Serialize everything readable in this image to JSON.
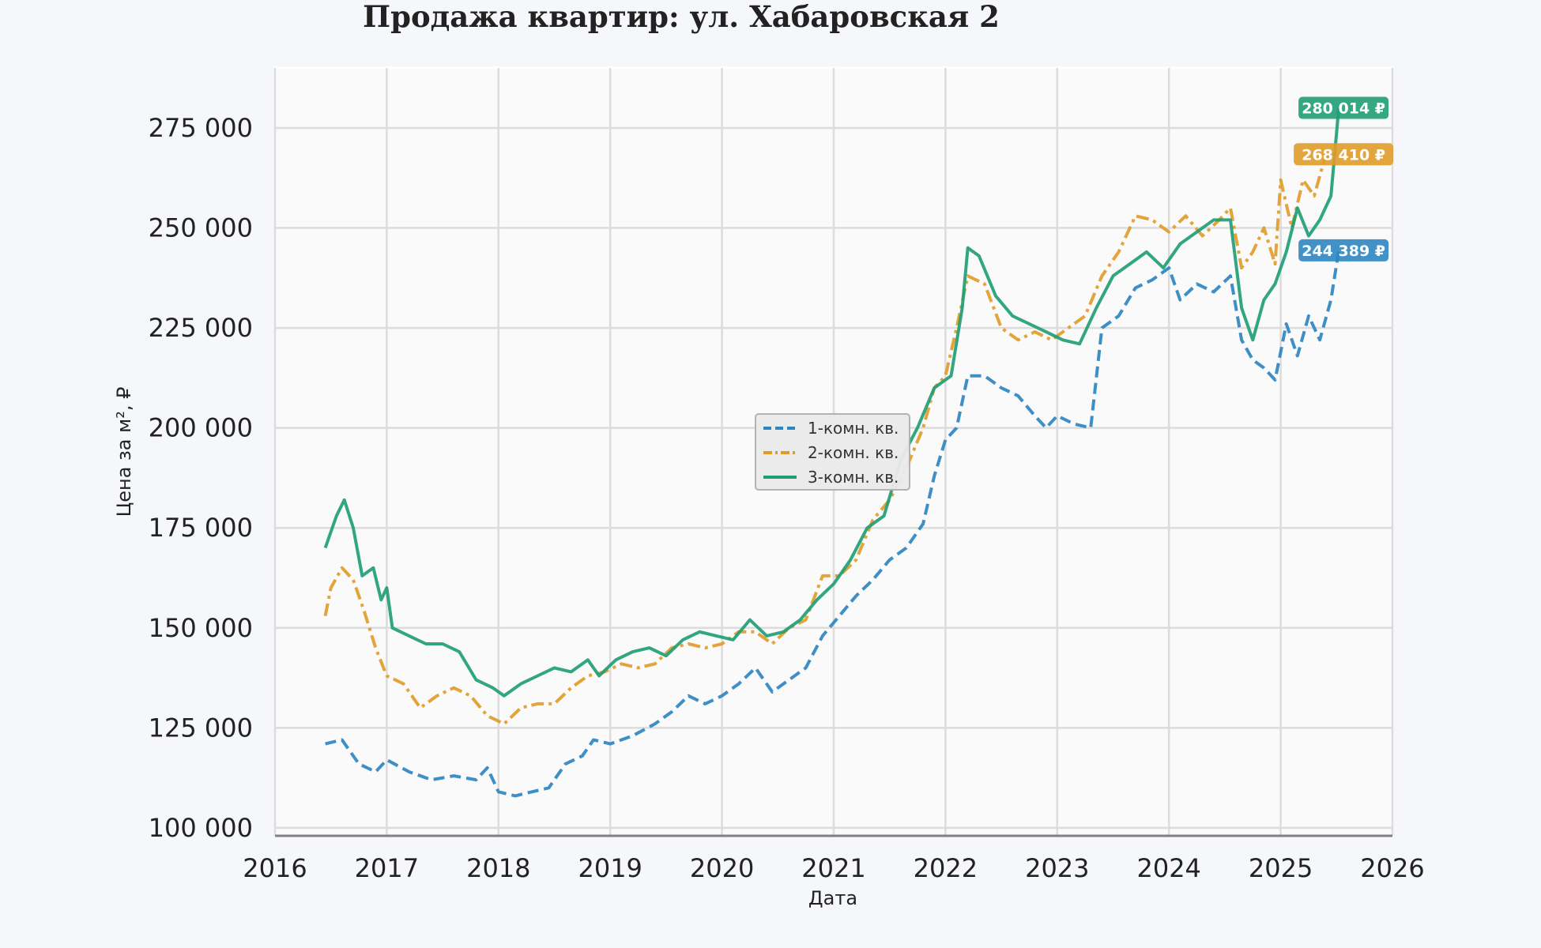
{
  "chart_data": {
    "type": "line",
    "title": "Продажа квартир: ул. Хабаровская 2",
    "xlabel": "Дата",
    "ylabel": "Цена за м², ₽",
    "xlim": [
      2016,
      2026
    ],
    "ylim": [
      98000,
      290000
    ],
    "x_ticks": [
      "2016",
      "2017",
      "2018",
      "2019",
      "2020",
      "2021",
      "2022",
      "2023",
      "2024",
      "2025",
      "2026"
    ],
    "y_ticks": [
      "100 000",
      "125 000",
      "150 000",
      "175 000",
      "200 000",
      "225 000",
      "250 000",
      "275 000"
    ],
    "grid": true,
    "legend_position": "center",
    "series": [
      {
        "name": "1-комн. кв.",
        "color": "#2e86c1",
        "style": "dashed",
        "last_label": "244 389 ₽",
        "points": [
          [
            2016.45,
            121000
          ],
          [
            2016.6,
            122000
          ],
          [
            2016.75,
            116000
          ],
          [
            2016.9,
            114000
          ],
          [
            2017.0,
            117000
          ],
          [
            2017.2,
            114000
          ],
          [
            2017.4,
            112000
          ],
          [
            2017.6,
            113000
          ],
          [
            2017.8,
            112000
          ],
          [
            2017.9,
            115000
          ],
          [
            2018.0,
            109000
          ],
          [
            2018.15,
            108000
          ],
          [
            2018.3,
            109000
          ],
          [
            2018.45,
            110000
          ],
          [
            2018.6,
            116000
          ],
          [
            2018.75,
            118000
          ],
          [
            2018.85,
            122000
          ],
          [
            2019.0,
            121000
          ],
          [
            2019.2,
            123000
          ],
          [
            2019.4,
            126000
          ],
          [
            2019.55,
            129000
          ],
          [
            2019.7,
            133000
          ],
          [
            2019.85,
            131000
          ],
          [
            2020.0,
            133000
          ],
          [
            2020.15,
            136000
          ],
          [
            2020.3,
            140000
          ],
          [
            2020.45,
            134000
          ],
          [
            2020.6,
            137000
          ],
          [
            2020.75,
            140000
          ],
          [
            2020.9,
            148000
          ],
          [
            2021.05,
            153000
          ],
          [
            2021.2,
            158000
          ],
          [
            2021.35,
            162000
          ],
          [
            2021.5,
            167000
          ],
          [
            2021.65,
            170000
          ],
          [
            2021.8,
            176000
          ],
          [
            2021.9,
            188000
          ],
          [
            2022.0,
            197000
          ],
          [
            2022.1,
            200000
          ],
          [
            2022.2,
            213000
          ],
          [
            2022.35,
            213000
          ],
          [
            2022.5,
            210000
          ],
          [
            2022.65,
            208000
          ],
          [
            2022.8,
            203000
          ],
          [
            2022.9,
            200000
          ],
          [
            2023.0,
            203000
          ],
          [
            2023.15,
            201000
          ],
          [
            2023.3,
            200000
          ],
          [
            2023.4,
            225000
          ],
          [
            2023.55,
            228000
          ],
          [
            2023.7,
            235000
          ],
          [
            2023.85,
            237000
          ],
          [
            2024.0,
            240000
          ],
          [
            2024.1,
            232000
          ],
          [
            2024.25,
            236000
          ],
          [
            2024.4,
            234000
          ],
          [
            2024.55,
            238000
          ],
          [
            2024.65,
            222000
          ],
          [
            2024.75,
            217000
          ],
          [
            2024.85,
            215000
          ],
          [
            2024.95,
            212000
          ],
          [
            2025.05,
            226000
          ],
          [
            2025.15,
            218000
          ],
          [
            2025.25,
            228000
          ],
          [
            2025.35,
            222000
          ],
          [
            2025.45,
            232000
          ],
          [
            2025.52,
            244389
          ]
        ]
      },
      {
        "name": "2-комн. кв.",
        "color": "#e09c2a",
        "style": "dashdot",
        "last_label": "268 410 ₽",
        "points": [
          [
            2016.45,
            153000
          ],
          [
            2016.5,
            160000
          ],
          [
            2016.6,
            165000
          ],
          [
            2016.7,
            162000
          ],
          [
            2016.8,
            154000
          ],
          [
            2016.9,
            145000
          ],
          [
            2017.0,
            138000
          ],
          [
            2017.15,
            136000
          ],
          [
            2017.3,
            130000
          ],
          [
            2017.45,
            133000
          ],
          [
            2017.6,
            135000
          ],
          [
            2017.75,
            133000
          ],
          [
            2017.9,
            128000
          ],
          [
            2018.05,
            126000
          ],
          [
            2018.2,
            130000
          ],
          [
            2018.35,
            131000
          ],
          [
            2018.5,
            131000
          ],
          [
            2018.65,
            135000
          ],
          [
            2018.8,
            138000
          ],
          [
            2018.95,
            139000
          ],
          [
            2019.1,
            141000
          ],
          [
            2019.25,
            140000
          ],
          [
            2019.4,
            141000
          ],
          [
            2019.55,
            145000
          ],
          [
            2019.7,
            146000
          ],
          [
            2019.85,
            145000
          ],
          [
            2020.0,
            146000
          ],
          [
            2020.15,
            149000
          ],
          [
            2020.3,
            149000
          ],
          [
            2020.45,
            146000
          ],
          [
            2020.6,
            150000
          ],
          [
            2020.75,
            152000
          ],
          [
            2020.9,
            163000
          ],
          [
            2021.05,
            163000
          ],
          [
            2021.2,
            167000
          ],
          [
            2021.35,
            177000
          ],
          [
            2021.5,
            182000
          ],
          [
            2021.65,
            190000
          ],
          [
            2021.8,
            200000
          ],
          [
            2021.9,
            210000
          ],
          [
            2022.0,
            213000
          ],
          [
            2022.1,
            225000
          ],
          [
            2022.2,
            238000
          ],
          [
            2022.35,
            236000
          ],
          [
            2022.5,
            225000
          ],
          [
            2022.65,
            222000
          ],
          [
            2022.8,
            224000
          ],
          [
            2022.95,
            222000
          ],
          [
            2023.1,
            225000
          ],
          [
            2023.25,
            228000
          ],
          [
            2023.4,
            238000
          ],
          [
            2023.55,
            244000
          ],
          [
            2023.7,
            253000
          ],
          [
            2023.85,
            252000
          ],
          [
            2024.0,
            249000
          ],
          [
            2024.15,
            253000
          ],
          [
            2024.3,
            248000
          ],
          [
            2024.45,
            252000
          ],
          [
            2024.55,
            255000
          ],
          [
            2024.65,
            240000
          ],
          [
            2024.75,
            244000
          ],
          [
            2024.85,
            250000
          ],
          [
            2024.95,
            241000
          ],
          [
            2025.0,
            262000
          ],
          [
            2025.1,
            250000
          ],
          [
            2025.2,
            262000
          ],
          [
            2025.3,
            258000
          ],
          [
            2025.4,
            268000
          ],
          [
            2025.52,
            268410
          ]
        ]
      },
      {
        "name": "3-комн. кв.",
        "color": "#1f9e75",
        "style": "solid",
        "last_label": "280 014 ₽",
        "points": [
          [
            2016.45,
            170000
          ],
          [
            2016.55,
            178000
          ],
          [
            2016.62,
            182000
          ],
          [
            2016.7,
            175000
          ],
          [
            2016.78,
            163000
          ],
          [
            2016.88,
            165000
          ],
          [
            2016.95,
            157000
          ],
          [
            2017.0,
            160000
          ],
          [
            2017.05,
            150000
          ],
          [
            2017.2,
            148000
          ],
          [
            2017.35,
            146000
          ],
          [
            2017.5,
            146000
          ],
          [
            2017.65,
            144000
          ],
          [
            2017.8,
            137000
          ],
          [
            2017.95,
            135000
          ],
          [
            2018.05,
            133000
          ],
          [
            2018.2,
            136000
          ],
          [
            2018.35,
            138000
          ],
          [
            2018.5,
            140000
          ],
          [
            2018.65,
            139000
          ],
          [
            2018.8,
            142000
          ],
          [
            2018.9,
            138000
          ],
          [
            2019.05,
            142000
          ],
          [
            2019.2,
            144000
          ],
          [
            2019.35,
            145000
          ],
          [
            2019.5,
            143000
          ],
          [
            2019.65,
            147000
          ],
          [
            2019.8,
            149000
          ],
          [
            2019.95,
            148000
          ],
          [
            2020.1,
            147000
          ],
          [
            2020.25,
            152000
          ],
          [
            2020.4,
            148000
          ],
          [
            2020.55,
            149000
          ],
          [
            2020.7,
            152000
          ],
          [
            2020.85,
            157000
          ],
          [
            2021.0,
            161000
          ],
          [
            2021.15,
            167000
          ],
          [
            2021.3,
            175000
          ],
          [
            2021.45,
            178000
          ],
          [
            2021.6,
            192000
          ],
          [
            2021.75,
            200000
          ],
          [
            2021.9,
            210000
          ],
          [
            2022.05,
            213000
          ],
          [
            2022.15,
            230000
          ],
          [
            2022.2,
            245000
          ],
          [
            2022.3,
            243000
          ],
          [
            2022.45,
            233000
          ],
          [
            2022.6,
            228000
          ],
          [
            2022.75,
            226000
          ],
          [
            2022.9,
            224000
          ],
          [
            2023.05,
            222000
          ],
          [
            2023.2,
            221000
          ],
          [
            2023.35,
            230000
          ],
          [
            2023.5,
            238000
          ],
          [
            2023.65,
            241000
          ],
          [
            2023.8,
            244000
          ],
          [
            2023.95,
            240000
          ],
          [
            2024.1,
            246000
          ],
          [
            2024.25,
            249000
          ],
          [
            2024.4,
            252000
          ],
          [
            2024.55,
            252000
          ],
          [
            2024.65,
            230000
          ],
          [
            2024.75,
            222000
          ],
          [
            2024.85,
            232000
          ],
          [
            2024.95,
            236000
          ],
          [
            2025.05,
            244000
          ],
          [
            2025.15,
            255000
          ],
          [
            2025.25,
            248000
          ],
          [
            2025.35,
            252000
          ],
          [
            2025.45,
            258000
          ],
          [
            2025.52,
            280014
          ]
        ]
      }
    ]
  }
}
